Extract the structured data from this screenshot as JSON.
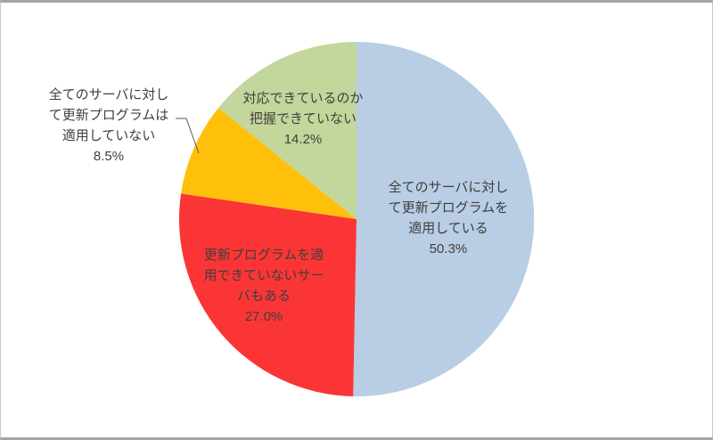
{
  "frame": {
    "background": "#FFFFFF",
    "border_color": "#A6A6A6"
  },
  "text_color": "#3F3F3F",
  "chart_data": {
    "type": "pie",
    "title": "",
    "legend": "none",
    "start_angle_deg": 0,
    "direction": "clockwise",
    "slices": [
      {
        "label": "全てのサーバに対して更新プログラムを適用している",
        "value_pct": 50.3,
        "value_label": "50.3%",
        "color": "#B9CDE5",
        "label_lines": [
          "全てのサーバに対し",
          "て更新プログラムを",
          "適用している"
        ],
        "label_placement": "inside"
      },
      {
        "label": "更新プログラムを適用できていないサーバもある",
        "value_pct": 27.0,
        "value_label": "27.0%",
        "color": "#FB3535",
        "label_lines": [
          "更新プログラムを適",
          "用できていないサー",
          "バもある"
        ],
        "label_placement": "inside"
      },
      {
        "label": "全てのサーバに対して更新プログラムは適用していない",
        "value_pct": 8.5,
        "value_label": "8.5%",
        "color": "#FFC00C",
        "label_lines": [
          "全てのサーバに対し",
          "て更新プログラムは",
          "適用していない"
        ],
        "label_placement": "outside-leader-line"
      },
      {
        "label": "対応できているのか把握できていない",
        "value_pct": 14.2,
        "value_label": "14.2%",
        "color": "#C3D69B",
        "label_lines": [
          "対応できているのか",
          "把握できていない"
        ],
        "label_placement": "inside"
      }
    ]
  }
}
